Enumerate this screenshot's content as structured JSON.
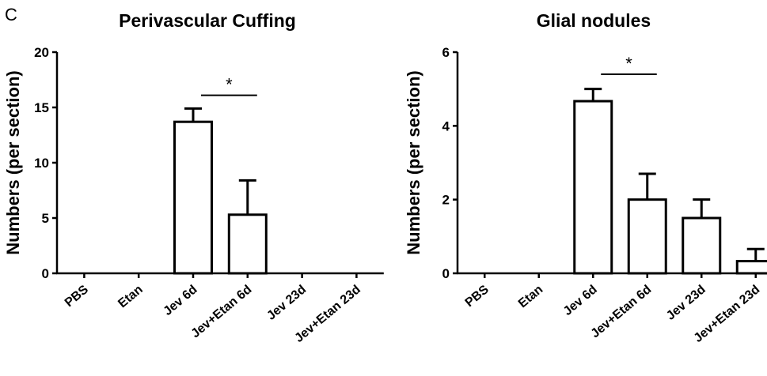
{
  "panel_letter": "C",
  "chart_data": [
    {
      "type": "bar",
      "title": "Perivascular Cuffing",
      "xlabel": "",
      "ylabel": "Numbers (per section)",
      "ylim": [
        0,
        20
      ],
      "yticks": [
        0,
        5,
        10,
        15,
        20
      ],
      "categories": [
        "PBS",
        "Etan",
        "Jev 6d",
        "Jev+Etan 6d",
        "Jev 23d",
        "Jev+Etan 23d"
      ],
      "values": [
        0,
        0,
        13.7,
        5.3,
        0,
        0
      ],
      "error": [
        0,
        0,
        1.2,
        3.1,
        0,
        0
      ],
      "significance": {
        "between": [
          2,
          3
        ],
        "label": "*",
        "y": 16.1
      }
    },
    {
      "type": "bar",
      "title": "Glial nodules",
      "xlabel": "",
      "ylabel": "Numbers (per section)",
      "ylim": [
        0,
        6
      ],
      "yticks": [
        0,
        2,
        4,
        6
      ],
      "categories": [
        "PBS",
        "Etan",
        "Jev 6d",
        "Jev+Etan 6d",
        "Jev 23d",
        "Jev+Etan 23d"
      ],
      "values": [
        0,
        0,
        4.67,
        2.0,
        1.5,
        0.33
      ],
      "error": [
        0,
        0,
        0.33,
        0.7,
        0.5,
        0.33
      ],
      "significance": {
        "between": [
          2,
          3
        ],
        "label": "*",
        "y": 5.4
      }
    }
  ]
}
